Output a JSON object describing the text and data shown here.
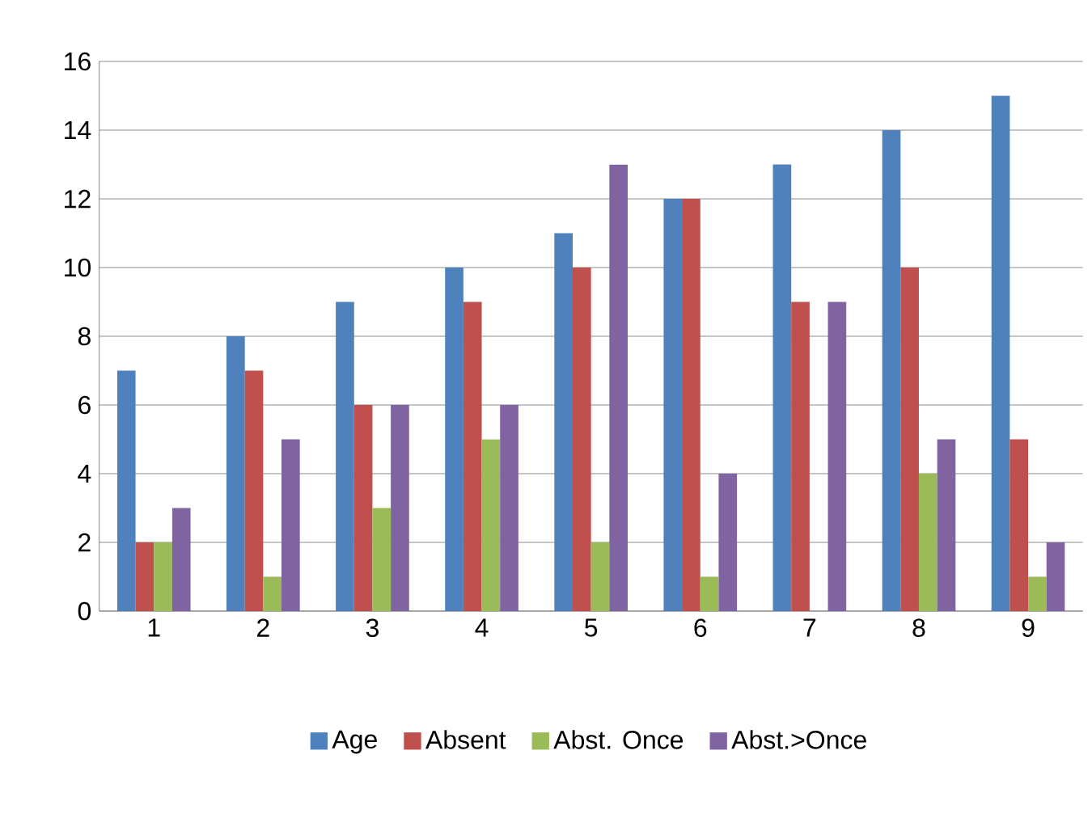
{
  "chart_data": {
    "type": "bar",
    "categories": [
      "1",
      "2",
      "3",
      "4",
      "5",
      "6",
      "7",
      "8",
      "9"
    ],
    "series": [
      {
        "name": "Age",
        "color": "#4f81bd",
        "values": [
          7,
          8,
          9,
          10,
          11,
          12,
          13,
          14,
          15
        ]
      },
      {
        "name": "Absent",
        "color": "#c0504d",
        "values": [
          2,
          7,
          6,
          9,
          10,
          12,
          9,
          10,
          5
        ]
      },
      {
        "name": "Abst. Once",
        "color": "#9bbb59",
        "values": [
          2,
          1,
          3,
          5,
          2,
          1,
          0,
          4,
          1
        ]
      },
      {
        "name": "Abst.>Once",
        "color": "#8064a2",
        "values": [
          3,
          5,
          6,
          6,
          13,
          4,
          9,
          5,
          2
        ]
      }
    ],
    "ylim": [
      0,
      16
    ],
    "yticks": [
      0,
      2,
      4,
      6,
      8,
      10,
      12,
      14,
      16
    ],
    "grid": "y",
    "legend": "bottom"
  }
}
